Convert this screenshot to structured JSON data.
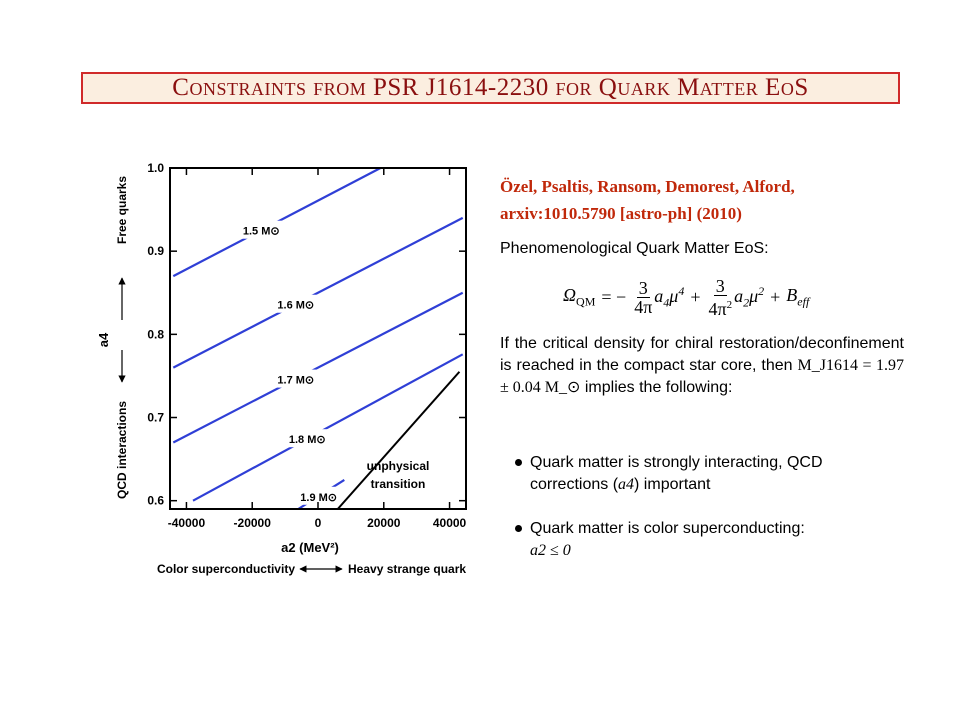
{
  "slide": {
    "title": "Constraints from PSR J1614-2230 for Quark Matter EoS",
    "reference_line1": "Özel, Psaltis, Ransom, Demorest, Alford,",
    "reference_line2": "arxiv:1010.5790 [astro-ph] (2010)",
    "heading": "Phenomenological Quark Matter EoS:",
    "paragraph_part1": "If the critical density for chiral restoration/deconfinement is reached in the compact star core, then",
    "paragraph_math": "M_J1614 = 1.97 ± 0.04 M_⊙",
    "paragraph_part2": "implies the following:",
    "bullet1_part1": "Quark matter is strongly interacting, QCD corrections (",
    "bullet1_math": "a4",
    "bullet1_part2": ") important",
    "bullet2_text": "Quark matter is color superconducting:",
    "bullet2_math": "a2 ≤ 0"
  },
  "colors": {
    "title_border": "#d02a2a",
    "title_fill": "#fbeee0",
    "title_text": "#8a0f0f",
    "reference_text": "#c0280a",
    "mass_lines": "#2f3fd6",
    "boundary_line": "#000000"
  },
  "chart_data": {
    "type": "line",
    "xlabel": "a2 (MeV²)",
    "ylabel": "a4",
    "xlim": [
      -45000,
      45000
    ],
    "ylim": [
      0.59,
      1.0
    ],
    "x_ticks": [
      -40000,
      -20000,
      0,
      20000,
      40000
    ],
    "x_tick_labels": [
      "-40000",
      "-20000",
      "0",
      "20000",
      "40000"
    ],
    "y_ticks": [
      0.6,
      0.7,
      0.8,
      0.9,
      1.0
    ],
    "y_tick_labels": [
      "0.6",
      "0.7",
      "0.8",
      "0.9",
      "1.0"
    ],
    "grid": false,
    "series": [
      {
        "name": "1.5 M⊙",
        "x": [
          -44000,
          19000
        ],
        "y": [
          0.87,
          1.0
        ]
      },
      {
        "name": "1.6 M⊙",
        "x": [
          -44000,
          44000
        ],
        "y": [
          0.76,
          0.94
        ]
      },
      {
        "name": "1.7 M⊙",
        "x": [
          -44000,
          44000
        ],
        "y": [
          0.67,
          0.85
        ]
      },
      {
        "name": "1.8 M⊙",
        "x": [
          -38000,
          44000
        ],
        "y": [
          0.6,
          0.776
        ]
      },
      {
        "name": "1.9 M⊙",
        "x": [
          -6000,
          8000
        ],
        "y": [
          0.59,
          0.625
        ]
      }
    ],
    "boundary": {
      "x": [
        6000,
        43000
      ],
      "y": [
        0.59,
        0.755
      ]
    },
    "annotations": [
      "unphysical",
      "transition"
    ],
    "y_side_labels": {
      "top": "Free quarks",
      "bottom": "QCD interactions"
    },
    "x_side_labels": {
      "left": "Color superconductivity",
      "right": "Heavy strange quark"
    }
  }
}
